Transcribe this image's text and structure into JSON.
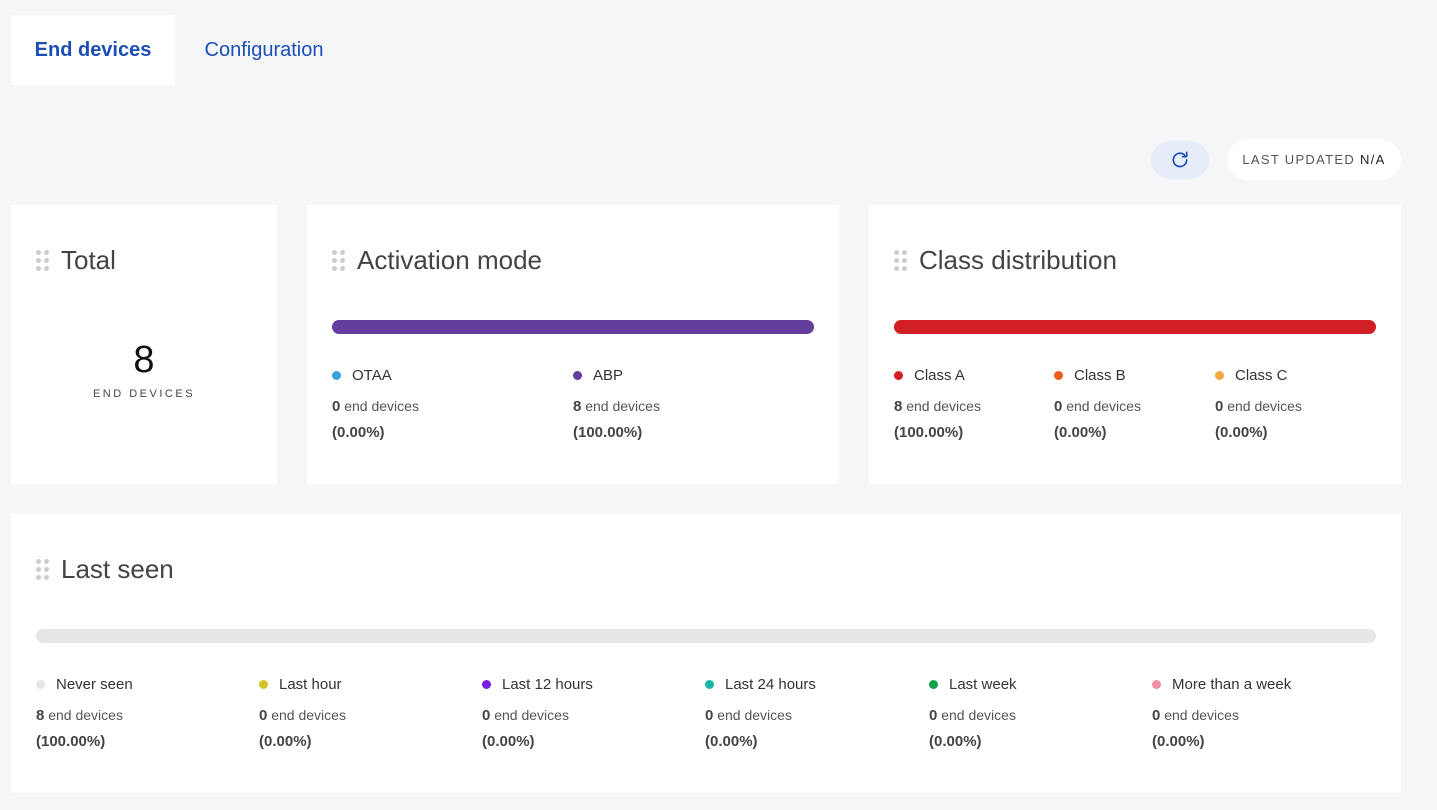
{
  "tabs": [
    {
      "label": "End devices"
    },
    {
      "label": "Configuration"
    }
  ],
  "last_updated": {
    "label": "LAST UPDATED",
    "value": "N/A"
  },
  "unit_text": "end devices",
  "total": {
    "title": "Total",
    "count": "8",
    "label": "END DEVICES"
  },
  "activation": {
    "title": "Activation mode",
    "items": [
      {
        "label": "OTAA",
        "count": "0",
        "pct": "(0.00%)",
        "color": "#3aa3dd"
      },
      {
        "label": "ABP",
        "count": "8",
        "pct": "(100.00%)",
        "color": "#643e9c"
      }
    ]
  },
  "class_distribution": {
    "title": "Class distribution",
    "items": [
      {
        "label": "Class A",
        "count": "8",
        "pct": "(100.00%)",
        "color": "#d21e25"
      },
      {
        "label": "Class B",
        "count": "0",
        "pct": "(0.00%)",
        "color": "#ef5d1c"
      },
      {
        "label": "Class C",
        "count": "0",
        "pct": "(0.00%)",
        "color": "#f5a742"
      }
    ]
  },
  "last_seen": {
    "title": "Last seen",
    "items": [
      {
        "label": "Never seen",
        "count": "8",
        "pct": "(100.00%)",
        "color": "#e6e6e6"
      },
      {
        "label": "Last hour",
        "count": "0",
        "pct": "(0.00%)",
        "color": "#d4c227"
      },
      {
        "label": "Last 12 hours",
        "count": "0",
        "pct": "(0.00%)",
        "color": "#7b1de0"
      },
      {
        "label": "Last 24 hours",
        "count": "0",
        "pct": "(0.00%)",
        "color": "#1ab5a9"
      },
      {
        "label": "Last week",
        "count": "0",
        "pct": "(0.00%)",
        "color": "#15a14a"
      },
      {
        "label": "More than a week",
        "count": "0",
        "pct": "(0.00%)",
        "color": "#f28fa6"
      }
    ]
  },
  "colors": {
    "tab_text": "#1c4fb5",
    "refresh_bg": "#e6edf8",
    "refresh_icon": "#1c4fb5"
  },
  "icons": {
    "refresh": "refresh-icon",
    "drag": "drag-handle-icon"
  }
}
